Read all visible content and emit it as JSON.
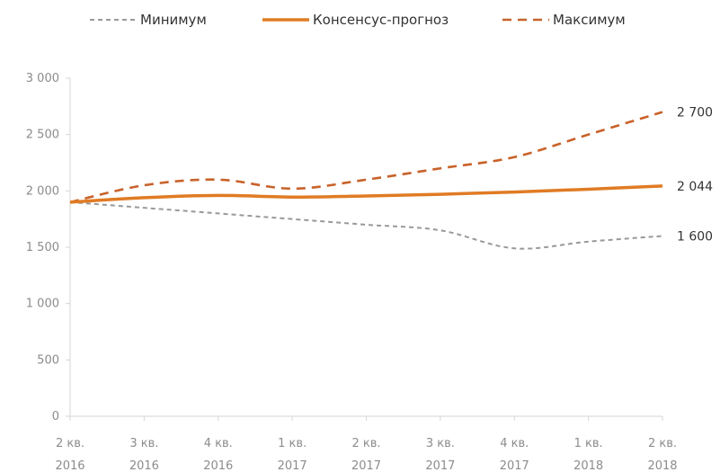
{
  "chart_data": {
    "type": "line",
    "categories": [
      [
        "2 кв.",
        "2016"
      ],
      [
        "3 кв.",
        "2016"
      ],
      [
        "4 кв.",
        "2016"
      ],
      [
        "1 кв.",
        "2017"
      ],
      [
        "2 кв.",
        "2017"
      ],
      [
        "3 кв.",
        "2017"
      ],
      [
        "4 кв.",
        "2017"
      ],
      [
        "1 кв.",
        "2018"
      ],
      [
        "2 кв.",
        "2018"
      ]
    ],
    "yticks": [
      "0",
      "500",
      "1 000",
      "1 500",
      "2 000",
      "2 500",
      "3 000"
    ],
    "ytick_values": [
      0,
      500,
      1000,
      1500,
      2000,
      2500,
      3000
    ],
    "ylim": [
      0,
      3000
    ],
    "grid": false,
    "legend_position": "top",
    "series": [
      {
        "key": "min",
        "name": "Минимум",
        "color": "#999999",
        "style": "dotted-thin",
        "values": [
          1900,
          1850,
          1800,
          1750,
          1700,
          1650,
          1490,
          1550,
          1600
        ],
        "end_label": "1 600"
      },
      {
        "key": "consensus",
        "name": "Консенсус-прогноз",
        "color": "#e07b24",
        "style": "solid-thick",
        "values": [
          1900,
          1940,
          1960,
          1945,
          1955,
          1970,
          1990,
          2015,
          2044
        ],
        "end_label": "2 044"
      },
      {
        "key": "max",
        "name": "Максимум",
        "color": "#c8622a",
        "style": "dashed",
        "values": [
          1900,
          2050,
          2100,
          2020,
          2100,
          2200,
          2300,
          2500,
          2700
        ],
        "end_label": "2 700"
      }
    ]
  }
}
